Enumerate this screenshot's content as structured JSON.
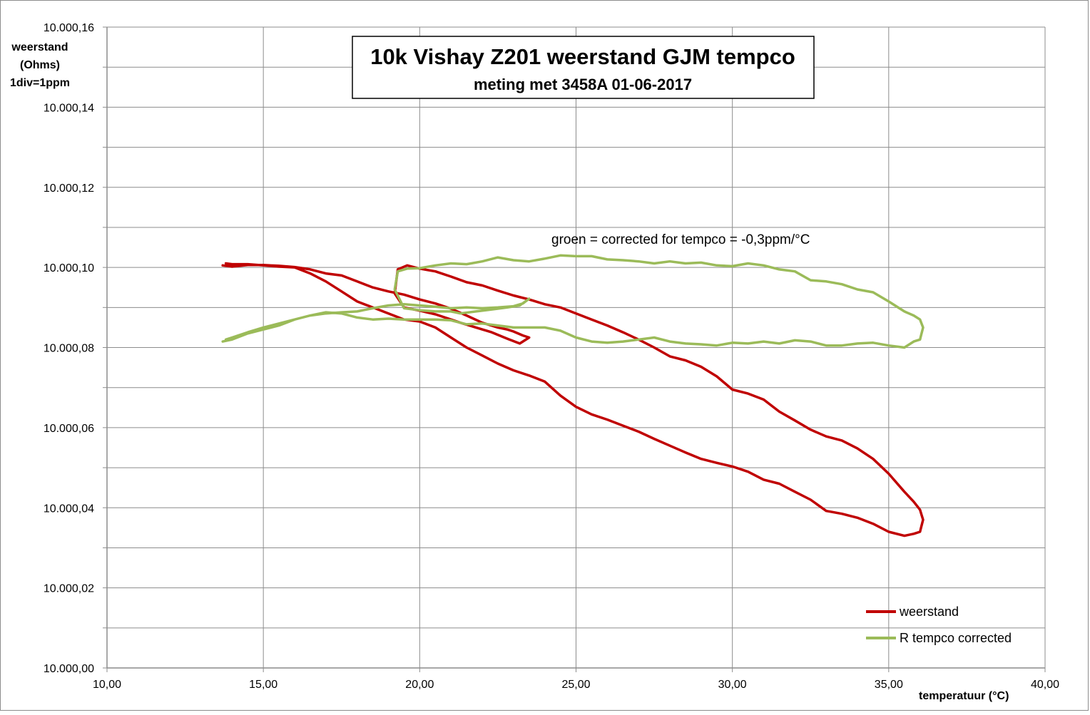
{
  "chart_data": {
    "type": "line",
    "title": "10k Vishay  Z201 weerstand GJM tempco",
    "subtitle": "meting met 3458A    01-06-2017",
    "ylabel_lines": [
      "weerstand",
      "(Ohms)",
      "1div=1ppm"
    ],
    "xlabel": "temperatuur (°C)",
    "annotation": "groen = corrected for tempco = -0,3ppm/°C",
    "xlim": [
      10,
      40
    ],
    "ylim": [
      10000.0,
      10000.16
    ],
    "x_ticks": [
      10,
      15,
      20,
      25,
      30,
      35,
      40
    ],
    "x_tick_labels": [
      "10,00",
      "15,00",
      "20,00",
      "25,00",
      "30,00",
      "35,00",
      "40,00"
    ],
    "y_ticks": [
      10000.0,
      10000.02,
      10000.04,
      10000.06,
      10000.08,
      10000.1,
      10000.12,
      10000.14,
      10000.16
    ],
    "y_tick_labels": [
      "10.000,00",
      "10.000,02",
      "10.000,04",
      "10.000,06",
      "10.000,08",
      "10.000,10",
      "10.000,12",
      "10.000,14",
      "10.000,16"
    ],
    "y_minor_step": 0.01,
    "grid": true,
    "legend_position": "bottom-right",
    "series": [
      {
        "name": "weerstand",
        "color": "#c00000",
        "points": [
          [
            13.7,
            10000.1005
          ],
          [
            14.0,
            10000.1002
          ],
          [
            14.5,
            10000.1006
          ],
          [
            15.0,
            10000.1006
          ],
          [
            15.5,
            10000.1004
          ],
          [
            16.0,
            10000.1001
          ],
          [
            16.5,
            10000.0995
          ],
          [
            17.0,
            10000.0985
          ],
          [
            17.5,
            10000.098
          ],
          [
            18.0,
            10000.0965
          ],
          [
            18.5,
            10000.095
          ],
          [
            19.0,
            10000.094
          ],
          [
            19.5,
            10000.0932
          ],
          [
            20.0,
            10000.092
          ],
          [
            20.5,
            10000.091
          ],
          [
            21.0,
            10000.0897
          ],
          [
            21.5,
            10000.088
          ],
          [
            22.0,
            10000.0862
          ],
          [
            22.5,
            10000.085
          ],
          [
            22.8,
            10000.0845
          ],
          [
            23.0,
            10000.084
          ],
          [
            23.3,
            10000.083
          ],
          [
            23.5,
            10000.0825
          ],
          [
            23.2,
            10000.081
          ],
          [
            22.8,
            10000.0822
          ],
          [
            22.3,
            10000.0838
          ],
          [
            21.8,
            10000.085
          ],
          [
            21.3,
            10000.0862
          ],
          [
            21.0,
            10000.087
          ],
          [
            20.5,
            10000.0883
          ],
          [
            20.0,
            10000.0892
          ],
          [
            19.5,
            10000.09
          ],
          [
            19.2,
            10000.0935
          ],
          [
            19.3,
            10000.0995
          ],
          [
            19.6,
            10000.1005
          ],
          [
            20.0,
            10000.0997
          ],
          [
            20.5,
            10000.099
          ],
          [
            21.0,
            10000.0977
          ],
          [
            21.5,
            10000.0963
          ],
          [
            22.0,
            10000.0955
          ],
          [
            22.5,
            10000.0942
          ],
          [
            23.0,
            10000.093
          ],
          [
            23.5,
            10000.092
          ],
          [
            24.0,
            10000.0908
          ],
          [
            24.5,
            10000.09
          ],
          [
            25.0,
            10000.0885
          ],
          [
            25.5,
            10000.087
          ],
          [
            26.0,
            10000.0855
          ],
          [
            26.5,
            10000.0838
          ],
          [
            27.0,
            10000.082
          ],
          [
            27.5,
            10000.08
          ],
          [
            28.0,
            10000.0778
          ],
          [
            28.5,
            10000.0768
          ],
          [
            29.0,
            10000.0752
          ],
          [
            29.5,
            10000.0728
          ],
          [
            30.0,
            10000.0695
          ],
          [
            30.5,
            10000.0685
          ],
          [
            31.0,
            10000.067
          ],
          [
            31.5,
            10000.064
          ],
          [
            32.0,
            10000.0618
          ],
          [
            32.5,
            10000.0595
          ],
          [
            33.0,
            10000.0578
          ],
          [
            33.5,
            10000.0568
          ],
          [
            34.0,
            10000.0548
          ],
          [
            34.5,
            10000.0522
          ],
          [
            35.0,
            10000.0485
          ],
          [
            35.5,
            10000.044
          ],
          [
            35.8,
            10000.0415
          ],
          [
            36.0,
            10000.0395
          ],
          [
            36.1,
            10000.037
          ],
          [
            36.0,
            10000.034
          ],
          [
            35.8,
            10000.0335
          ],
          [
            35.5,
            10000.033
          ],
          [
            35.0,
            10000.034
          ],
          [
            34.5,
            10000.036
          ],
          [
            34.0,
            10000.0375
          ],
          [
            33.5,
            10000.0385
          ],
          [
            33.0,
            10000.0392
          ],
          [
            32.5,
            10000.042
          ],
          [
            32.0,
            10000.044
          ],
          [
            31.5,
            10000.046
          ],
          [
            31.0,
            10000.047
          ],
          [
            30.5,
            10000.049
          ],
          [
            30.0,
            10000.0503
          ],
          [
            29.5,
            10000.0512
          ],
          [
            29.0,
            10000.0522
          ],
          [
            28.5,
            10000.0538
          ],
          [
            28.0,
            10000.0555
          ],
          [
            27.5,
            10000.0572
          ],
          [
            27.0,
            10000.059
          ],
          [
            26.5,
            10000.0605
          ],
          [
            26.0,
            10000.062
          ],
          [
            25.5,
            10000.0633
          ],
          [
            25.0,
            10000.0652
          ],
          [
            24.5,
            10000.068
          ],
          [
            24.0,
            10000.0715
          ],
          [
            23.5,
            10000.073
          ],
          [
            23.0,
            10000.0743
          ],
          [
            22.5,
            10000.076
          ],
          [
            22.0,
            10000.078
          ],
          [
            21.5,
            10000.08
          ],
          [
            21.0,
            10000.0825
          ],
          [
            20.5,
            10000.085
          ],
          [
            20.0,
            10000.0865
          ],
          [
            19.5,
            10000.087
          ],
          [
            19.0,
            10000.0885
          ],
          [
            18.5,
            10000.09
          ],
          [
            18.0,
            10000.0915
          ],
          [
            17.5,
            10000.094
          ],
          [
            17.0,
            10000.0965
          ],
          [
            16.5,
            10000.0985
          ],
          [
            16.0,
            10000.1
          ],
          [
            15.5,
            10000.1002
          ],
          [
            15.0,
            10000.1005
          ],
          [
            14.5,
            10000.1008
          ],
          [
            14.0,
            10000.1008
          ],
          [
            13.8,
            10000.101
          ]
        ]
      },
      {
        "name": "R tempco  corrected",
        "color": "#9bbb59",
        "points": [
          [
            13.7,
            10000.0815
          ],
          [
            14.0,
            10000.082
          ],
          [
            14.5,
            10000.0835
          ],
          [
            15.0,
            10000.0845
          ],
          [
            15.5,
            10000.0855
          ],
          [
            16.0,
            10000.087
          ],
          [
            16.5,
            10000.088
          ],
          [
            17.0,
            10000.0885
          ],
          [
            17.5,
            10000.0888
          ],
          [
            18.0,
            10000.089
          ],
          [
            18.5,
            10000.0898
          ],
          [
            19.0,
            10000.0905
          ],
          [
            19.5,
            10000.0908
          ],
          [
            20.0,
            10000.0905
          ],
          [
            20.5,
            10000.0902
          ],
          [
            21.0,
            10000.0898
          ],
          [
            21.5,
            10000.09
          ],
          [
            22.0,
            10000.0898
          ],
          [
            22.5,
            10000.09
          ],
          [
            23.0,
            10000.0903
          ],
          [
            23.3,
            10000.091
          ],
          [
            23.5,
            10000.0922
          ],
          [
            23.2,
            10000.0905
          ],
          [
            22.8,
            10000.09
          ],
          [
            22.3,
            10000.0895
          ],
          [
            21.8,
            10000.089
          ],
          [
            21.3,
            10000.0885
          ],
          [
            21.0,
            10000.089
          ],
          [
            20.5,
            10000.089
          ],
          [
            20.0,
            10000.0893
          ],
          [
            19.5,
            10000.0898
          ],
          [
            19.2,
            10000.0945
          ],
          [
            19.3,
            10000.099
          ],
          [
            19.6,
            10000.0997
          ],
          [
            20.0,
            10000.0998
          ],
          [
            20.5,
            10000.1005
          ],
          [
            21.0,
            10000.101
          ],
          [
            21.5,
            10000.1008
          ],
          [
            22.0,
            10000.1015
          ],
          [
            22.5,
            10000.1025
          ],
          [
            23.0,
            10000.1018
          ],
          [
            23.5,
            10000.1015
          ],
          [
            24.0,
            10000.1022
          ],
          [
            24.5,
            10000.103
          ],
          [
            25.0,
            10000.1028
          ],
          [
            25.5,
            10000.1028
          ],
          [
            26.0,
            10000.102
          ],
          [
            26.5,
            10000.1018
          ],
          [
            27.0,
            10000.1015
          ],
          [
            27.5,
            10000.101
          ],
          [
            28.0,
            10000.1015
          ],
          [
            28.5,
            10000.101
          ],
          [
            29.0,
            10000.1012
          ],
          [
            29.5,
            10000.1005
          ],
          [
            30.0,
            10000.1003
          ],
          [
            30.5,
            10000.101
          ],
          [
            31.0,
            10000.1005
          ],
          [
            31.5,
            10000.0995
          ],
          [
            32.0,
            10000.099
          ],
          [
            32.5,
            10000.0968
          ],
          [
            33.0,
            10000.0965
          ],
          [
            33.5,
            10000.0958
          ],
          [
            34.0,
            10000.0945
          ],
          [
            34.5,
            10000.0938
          ],
          [
            35.0,
            10000.0915
          ],
          [
            35.5,
            10000.089
          ],
          [
            35.8,
            10000.088
          ],
          [
            36.0,
            10000.087
          ],
          [
            36.1,
            10000.085
          ],
          [
            36.0,
            10000.082
          ],
          [
            35.8,
            10000.0815
          ],
          [
            35.5,
            10000.08
          ],
          [
            35.0,
            10000.0805
          ],
          [
            34.5,
            10000.0812
          ],
          [
            34.0,
            10000.081
          ],
          [
            33.5,
            10000.0805
          ],
          [
            33.0,
            10000.0805
          ],
          [
            32.5,
            10000.0815
          ],
          [
            32.0,
            10000.0818
          ],
          [
            31.5,
            10000.081
          ],
          [
            31.0,
            10000.0815
          ],
          [
            30.5,
            10000.081
          ],
          [
            30.0,
            10000.0812
          ],
          [
            29.5,
            10000.0805
          ],
          [
            29.0,
            10000.0808
          ],
          [
            28.5,
            10000.081
          ],
          [
            28.0,
            10000.0815
          ],
          [
            27.5,
            10000.0825
          ],
          [
            27.0,
            10000.082
          ],
          [
            26.5,
            10000.0815
          ],
          [
            26.0,
            10000.0812
          ],
          [
            25.5,
            10000.0815
          ],
          [
            25.0,
            10000.0825
          ],
          [
            24.5,
            10000.0842
          ],
          [
            24.0,
            10000.085
          ],
          [
            23.5,
            10000.085
          ],
          [
            23.0,
            10000.085
          ],
          [
            22.5,
            10000.0855
          ],
          [
            22.0,
            10000.086
          ],
          [
            21.5,
            10000.0858
          ],
          [
            21.0,
            10000.0868
          ],
          [
            20.5,
            10000.087
          ],
          [
            20.0,
            10000.087
          ],
          [
            19.5,
            10000.087
          ],
          [
            19.0,
            10000.0872
          ],
          [
            18.5,
            10000.087
          ],
          [
            18.0,
            10000.0875
          ],
          [
            17.5,
            10000.0885
          ],
          [
            17.0,
            10000.0888
          ],
          [
            16.5,
            10000.088
          ],
          [
            16.0,
            10000.087
          ],
          [
            15.5,
            10000.086
          ],
          [
            15.0,
            10000.085
          ],
          [
            14.5,
            10000.0838
          ],
          [
            14.0,
            10000.0825
          ],
          [
            13.8,
            10000.082
          ]
        ]
      }
    ]
  }
}
